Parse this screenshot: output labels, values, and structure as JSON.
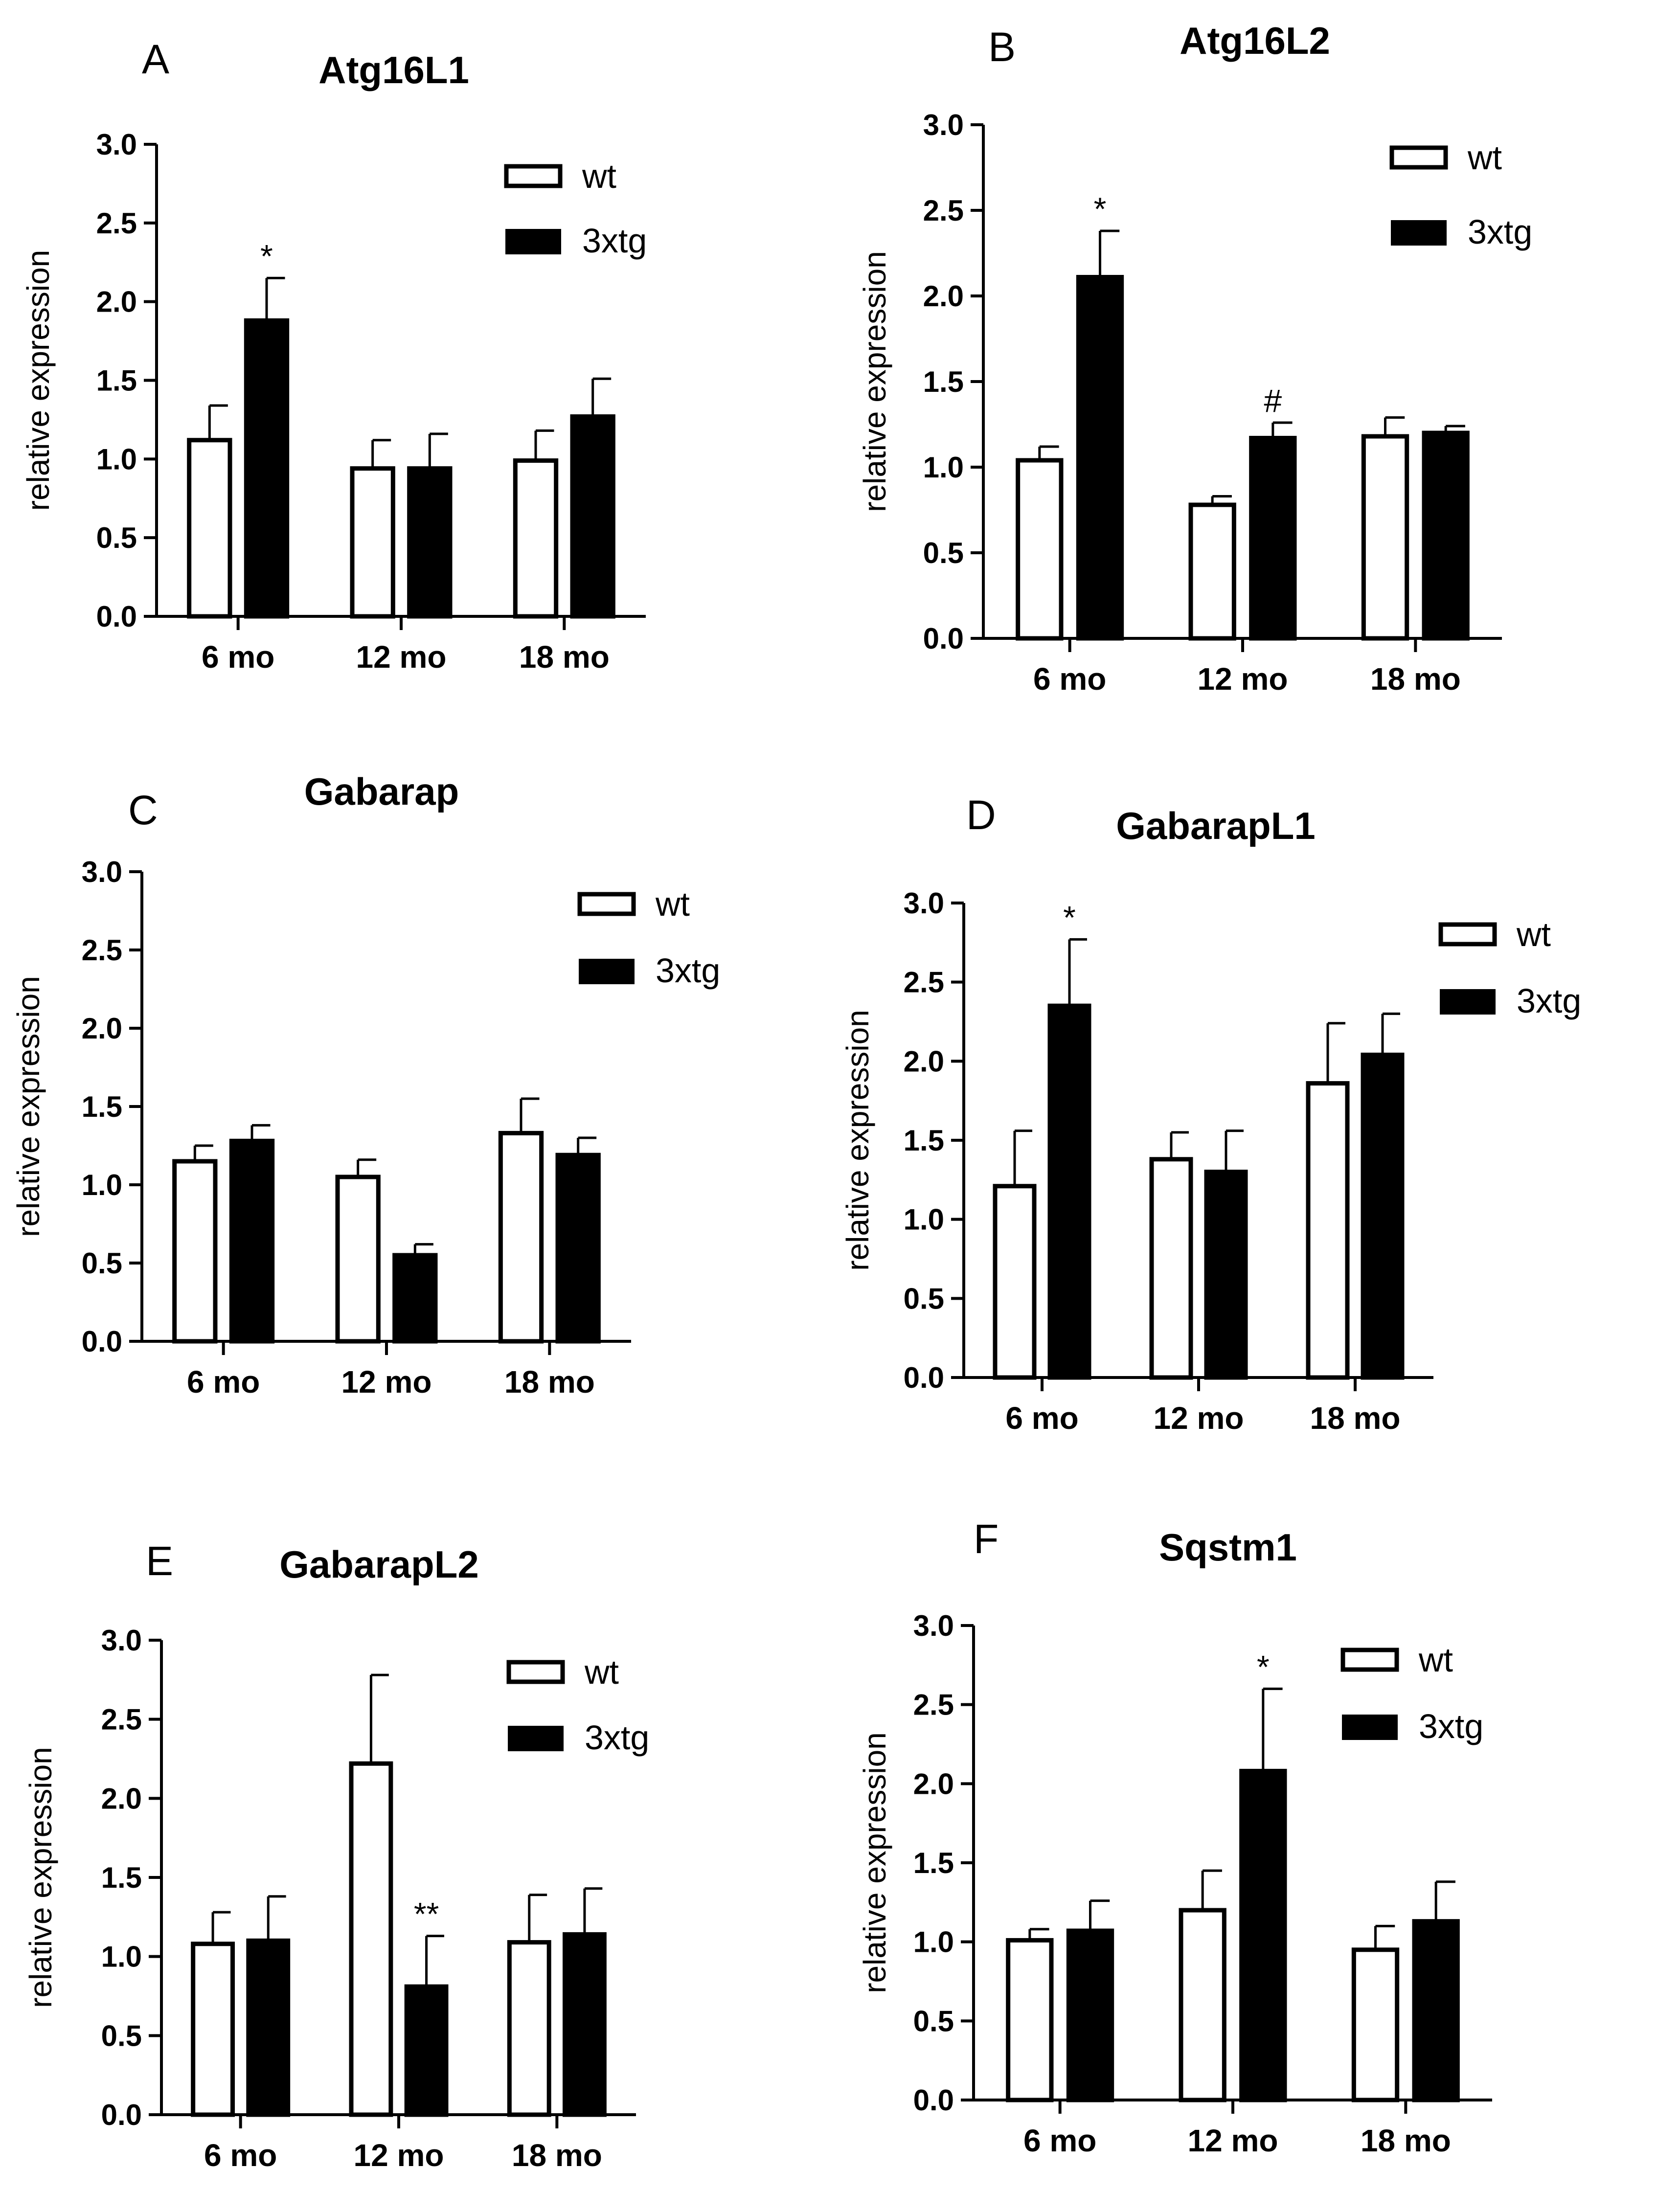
{
  "legend": {
    "wt_label": "wt",
    "tg_label": "3xtg"
  },
  "colors": {
    "wt_fill": "#ffffff",
    "tg_fill": "#000000",
    "axis": "#000000"
  },
  "chart_data": [
    {
      "type": "bar",
      "panel": "A",
      "title": "Atg16L1",
      "ylabel": "relative expression",
      "xlabel": "",
      "categories": [
        "6 mo",
        "12 mo",
        "18 mo"
      ],
      "ylim": [
        0,
        3.0
      ],
      "yticks": [
        "0.0",
        "0.5",
        "1.0",
        "1.5",
        "2.0",
        "2.5",
        "3.0"
      ],
      "series": [
        {
          "name": "wt",
          "values": [
            1.12,
            0.94,
            0.99
          ],
          "errors": [
            0.22,
            0.18,
            0.19
          ]
        },
        {
          "name": "3xtg",
          "values": [
            1.88,
            0.94,
            1.27
          ],
          "errors": [
            0.27,
            0.22,
            0.24
          ]
        }
      ],
      "annotations": [
        {
          "text": "*",
          "category": 0,
          "series": 1
        }
      ]
    },
    {
      "type": "bar",
      "panel": "B",
      "title": "Atg16L2",
      "ylabel": "relative expression",
      "xlabel": "",
      "categories": [
        "6 mo",
        "12 mo",
        "18 mo"
      ],
      "ylim": [
        0,
        3.0
      ],
      "yticks": [
        "0.0",
        "0.5",
        "1.0",
        "1.5",
        "2.0",
        "2.5",
        "3.0"
      ],
      "series": [
        {
          "name": "wt",
          "values": [
            1.04,
            0.78,
            1.18
          ],
          "errors": [
            0.08,
            0.05,
            0.11
          ]
        },
        {
          "name": "3xtg",
          "values": [
            2.11,
            1.17,
            1.2
          ],
          "errors": [
            0.27,
            0.09,
            0.04
          ]
        }
      ],
      "annotations": [
        {
          "text": "*",
          "category": 0,
          "series": 1
        },
        {
          "text": "#",
          "category": 1,
          "series": 1
        }
      ]
    },
    {
      "type": "bar",
      "panel": "C",
      "title": "Gabarap",
      "ylabel": "relative expression",
      "xlabel": "",
      "categories": [
        "6 mo",
        "12 mo",
        "18 mo"
      ],
      "ylim": [
        0,
        3.0
      ],
      "yticks": [
        "0.0",
        "0.5",
        "1.0",
        "1.5",
        "2.0",
        "2.5",
        "3.0"
      ],
      "series": [
        {
          "name": "wt",
          "values": [
            1.15,
            1.05,
            1.33
          ],
          "errors": [
            0.1,
            0.11,
            0.22
          ]
        },
        {
          "name": "3xtg",
          "values": [
            1.28,
            0.55,
            1.19
          ],
          "errors": [
            0.1,
            0.07,
            0.11
          ]
        }
      ],
      "annotations": []
    },
    {
      "type": "bar",
      "panel": "D",
      "title": "GabarapL1",
      "ylabel": "relative expression",
      "xlabel": "",
      "categories": [
        "6 mo",
        "12 mo",
        "18 mo"
      ],
      "ylim": [
        0,
        3.0
      ],
      "yticks": [
        "0.0",
        "0.5",
        "1.0",
        "1.5",
        "2.0",
        "2.5",
        "3.0"
      ],
      "series": [
        {
          "name": "wt",
          "values": [
            1.21,
            1.38,
            1.86
          ],
          "errors": [
            0.35,
            0.17,
            0.38
          ]
        },
        {
          "name": "3xtg",
          "values": [
            2.35,
            1.3,
            2.04
          ],
          "errors": [
            0.42,
            0.26,
            0.26
          ]
        }
      ],
      "annotations": [
        {
          "text": "*",
          "category": 0,
          "series": 1
        }
      ]
    },
    {
      "type": "bar",
      "panel": "E",
      "title": "GabarapL2",
      "ylabel": "relative expression",
      "xlabel": "",
      "categories": [
        "6 mo",
        "12 mo",
        "18 mo"
      ],
      "ylim": [
        0,
        3.0
      ],
      "yticks": [
        "0.0",
        "0.5",
        "1.0",
        "1.5",
        "2.0",
        "2.5",
        "3.0"
      ],
      "series": [
        {
          "name": "wt",
          "values": [
            1.08,
            2.22,
            1.09
          ],
          "errors": [
            0.2,
            0.56,
            0.3
          ]
        },
        {
          "name": "3xtg",
          "values": [
            1.1,
            0.81,
            1.14
          ],
          "errors": [
            0.28,
            0.32,
            0.29
          ]
        }
      ],
      "annotations": [
        {
          "text": "**",
          "category": 1,
          "series": 1
        }
      ]
    },
    {
      "type": "bar",
      "panel": "F",
      "title": "Sqstm1",
      "ylabel": "relative expression",
      "xlabel": "",
      "categories": [
        "6 mo",
        "12 mo",
        "18 mo"
      ],
      "ylim": [
        0,
        3.0
      ],
      "yticks": [
        "0.0",
        "0.5",
        "1.0",
        "1.5",
        "2.0",
        "2.5",
        "3.0"
      ],
      "series": [
        {
          "name": "wt",
          "values": [
            1.01,
            1.2,
            0.95
          ],
          "errors": [
            0.07,
            0.25,
            0.15
          ]
        },
        {
          "name": "3xtg",
          "values": [
            1.07,
            2.08,
            1.13
          ],
          "errors": [
            0.19,
            0.52,
            0.25
          ]
        }
      ],
      "annotations": [
        {
          "text": "*",
          "category": 1,
          "series": 1
        }
      ]
    }
  ]
}
